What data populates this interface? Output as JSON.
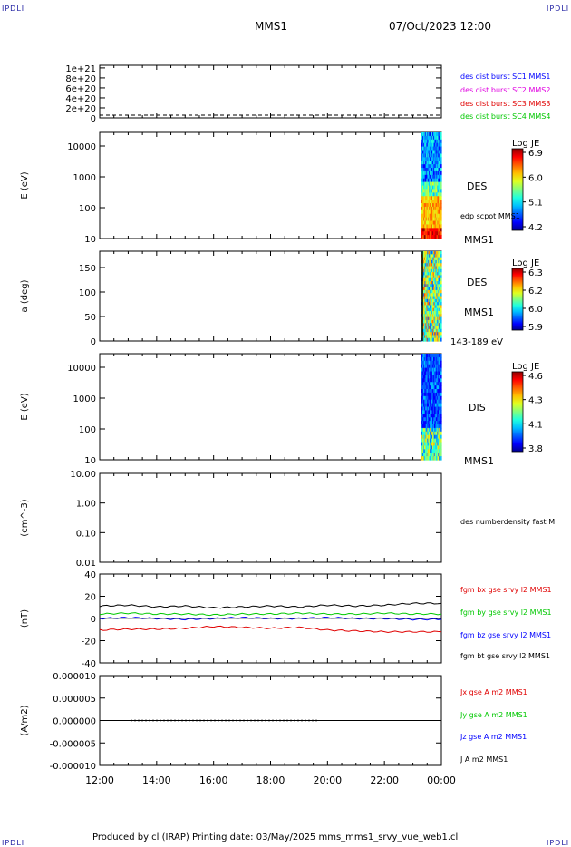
{
  "corner_labels": {
    "tl": "IPDLI",
    "tr": "IPDLI",
    "bl": "IPDLI",
    "br": "IPDLI"
  },
  "header": {
    "spacecraft": "MMS1",
    "datetime": "07/Oct/2023 12:00"
  },
  "footer": {
    "text": "Produced by cl (IRAP)   Printing date: 03/May/2025   mms_mms1_srvy_vue_web1.cl"
  },
  "x_axis": {
    "ticks": [
      "12:00",
      "14:00",
      "16:00",
      "18:00",
      "20:00",
      "22:00",
      "00:00"
    ]
  },
  "colors": {
    "series_blue": "#0000ff",
    "series_magenta": "#e000e0",
    "series_red": "#e00000",
    "series_green": "#00c800",
    "series_black": "#000000"
  },
  "chart_data": [
    {
      "type": "line",
      "ylabel": "",
      "yticks": [
        "1e+21",
        "8e+20",
        "6e+20",
        "4e+20",
        "2e+20",
        "0"
      ],
      "legend": [
        {
          "text": "des dist burst SC1 MMS1",
          "color": "#0000ff"
        },
        {
          "text": "des dist burst SC2 MMS2",
          "color": "#e000e0"
        },
        {
          "text": "des dist burst SC3 MMS3",
          "color": "#e00000"
        },
        {
          "text": "des dist burst SC4 MMS4",
          "color": "#00c800"
        }
      ]
    },
    {
      "type": "heatmap",
      "ylabel": "E (eV)",
      "yticks": [
        "10000",
        "1000",
        "100",
        "10"
      ],
      "side_labels": [
        "DES",
        "edp scpot MMS1",
        "MMS1"
      ],
      "colorbar": {
        "title": "Log JE",
        "ticks": [
          "6.9",
          "6.0",
          "5.1",
          "4.2"
        ]
      }
    },
    {
      "type": "heatmap",
      "ylabel": "a (deg)",
      "yticks": [
        "150",
        "100",
        "50",
        "0"
      ],
      "side_labels": [
        "DES",
        "MMS1",
        "143-189 eV"
      ],
      "colorbar": {
        "title": "Log JE",
        "ticks": [
          "6.3",
          "6.2",
          "6.0",
          "5.9"
        ]
      }
    },
    {
      "type": "heatmap",
      "ylabel": "E (eV)",
      "yticks": [
        "10000",
        "1000",
        "100",
        "10"
      ],
      "side_labels": [
        "DIS",
        "MMS1"
      ],
      "colorbar": {
        "title": "Log JE",
        "ticks": [
          "4.6",
          "4.3",
          "4.1",
          "3.8"
        ]
      }
    },
    {
      "type": "line",
      "ylabel": "(cm^-3)",
      "yticks": [
        "10.00",
        "1.00",
        "0.10",
        "0.01"
      ],
      "legend": [
        {
          "text": "des numberdensity fast M",
          "color": "#000000"
        }
      ]
    },
    {
      "type": "line",
      "ylabel": "(nT)",
      "yticks": [
        "40",
        "20",
        "0",
        "-20",
        "-40"
      ],
      "ylim": [
        -50,
        50
      ],
      "legend": [
        {
          "text": "fgm bx gse srvy l2 MMS1",
          "color": "#e00000"
        },
        {
          "text": "fgm by gse srvy l2 MMS1",
          "color": "#00c800"
        },
        {
          "text": "fgm bz gse srvy l2 MMS1",
          "color": "#0000ff"
        },
        {
          "text": "fgm bt gse srvy l2 MMS1",
          "color": "#000000"
        }
      ],
      "x": [
        12,
        13,
        14,
        15,
        16,
        17,
        18,
        19,
        20,
        21,
        22,
        23,
        24
      ],
      "series": [
        {
          "values": [
            14,
            15,
            13,
            14,
            12,
            13,
            14,
            13,
            15,
            14,
            15,
            17,
            17
          ]
        },
        {
          "values": [
            5,
            6,
            5,
            5,
            4,
            5,
            5,
            6,
            5,
            5,
            6,
            5,
            5
          ]
        },
        {
          "values": [
            0,
            1,
            0,
            -1,
            0,
            1,
            0,
            0,
            1,
            0,
            0,
            -1,
            -1
          ]
        },
        {
          "values": [
            -13,
            -12,
            -12,
            -11,
            -9,
            -10,
            -11,
            -10,
            -13,
            -14,
            -15,
            -15,
            -15
          ]
        }
      ]
    },
    {
      "type": "line",
      "ylabel": "(A/m2)",
      "yticks": [
        "0.000010",
        "0.000005",
        "0.000000",
        "-0.000005",
        "-0.000010"
      ],
      "ylim": [
        -1e-05,
        1e-05
      ],
      "legend": [
        {
          "text": "Jx gse A m2 MMS1",
          "color": "#e00000"
        },
        {
          "text": "Jy gse A m2 MMS1",
          "color": "#00c800"
        },
        {
          "text": "Jz gse A m2 MMS1",
          "color": "#0000ff"
        },
        {
          "text": "J A m2 MMS1",
          "color": "#000000"
        }
      ]
    }
  ]
}
